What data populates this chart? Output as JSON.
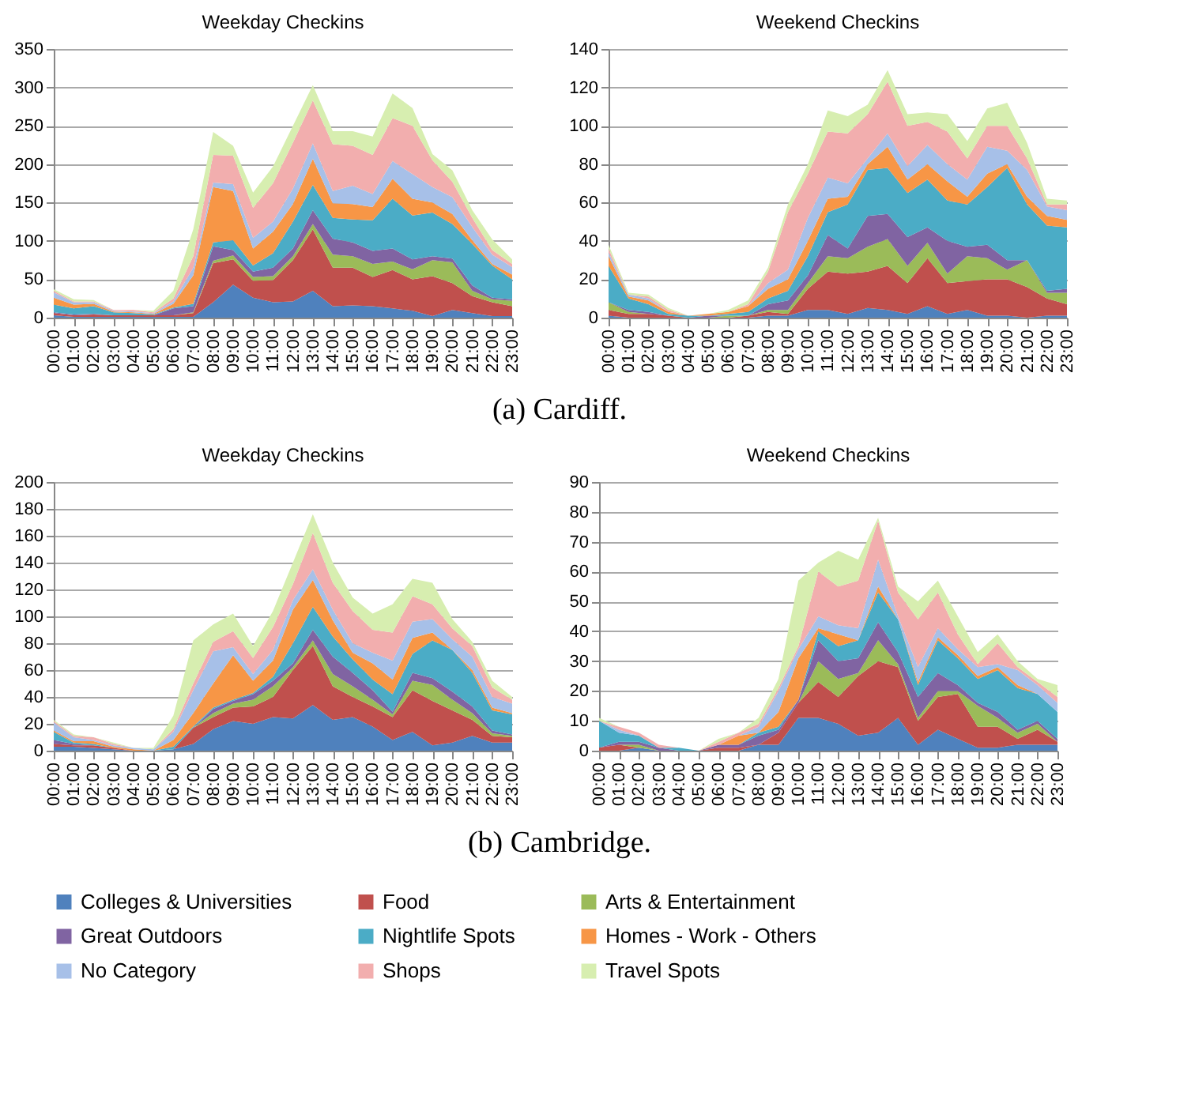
{
  "chart_data": [
    {
      "type": "area",
      "stacked": true,
      "title": "Weekday Checkins",
      "categories": [
        "00:00",
        "01:00",
        "02:00",
        "03:00",
        "04:00",
        "05:00",
        "06:00",
        "07:00",
        "08:00",
        "09:00",
        "10:00",
        "11:00",
        "12:00",
        "13:00",
        "14:00",
        "15:00",
        "16:00",
        "17:00",
        "18:00",
        "19:00",
        "20:00",
        "21:00",
        "22:00",
        "23:00"
      ],
      "ylim": [
        0,
        350
      ],
      "yticks": [
        0,
        50,
        100,
        150,
        200,
        250,
        300,
        350
      ],
      "grid": "y",
      "legend": "bottom",
      "annotations": [
        "(a) Cardiff."
      ],
      "series": [
        {
          "name": "Colleges & Universities",
          "color": "#4f81bd",
          "values": [
            3,
            1,
            1,
            1,
            1,
            1,
            1,
            1,
            20,
            43,
            26,
            20,
            21,
            35,
            15,
            16,
            15,
            12,
            9,
            2,
            10,
            6,
            2,
            2
          ]
        },
        {
          "name": "Food",
          "color": "#c0504d",
          "values": [
            3,
            2,
            3,
            2,
            2,
            2,
            2,
            5,
            51,
            33,
            22,
            29,
            54,
            80,
            50,
            49,
            38,
            50,
            41,
            52,
            35,
            22,
            18,
            13
          ]
        },
        {
          "name": "Arts & Entertainment",
          "color": "#9bbb59",
          "values": [
            0,
            0,
            0,
            0,
            0,
            0,
            0,
            1,
            3,
            5,
            5,
            5,
            5,
            7,
            17,
            15,
            17,
            11,
            13,
            21,
            27,
            7,
            4,
            7
          ]
        },
        {
          "name": "Great Outdoors",
          "color": "#8064a2",
          "values": [
            1,
            1,
            1,
            0,
            0,
            0,
            9,
            8,
            19,
            7,
            7,
            11,
            10,
            18,
            21,
            18,
            17,
            17,
            13,
            5,
            5,
            7,
            2,
            2
          ]
        },
        {
          "name": "Nightlife Spots",
          "color": "#4bacc6",
          "values": [
            10,
            8,
            10,
            4,
            3,
            1,
            1,
            3,
            5,
            13,
            8,
            19,
            35,
            33,
            27,
            30,
            40,
            65,
            57,
            57,
            45,
            54,
            42,
            26
          ]
        },
        {
          "name": "Homes - Work - Others",
          "color": "#f79646",
          "values": [
            9,
            5,
            3,
            1,
            1,
            1,
            5,
            37,
            72,
            64,
            22,
            28,
            23,
            34,
            19,
            20,
            17,
            26,
            22,
            13,
            13,
            5,
            2,
            6
          ]
        },
        {
          "name": "No Category",
          "color": "#a7c0e8",
          "values": [
            7,
            3,
            2,
            1,
            1,
            1,
            3,
            10,
            6,
            9,
            14,
            13,
            20,
            20,
            16,
            24,
            17,
            23,
            32,
            20,
            22,
            17,
            12,
            10
          ]
        },
        {
          "name": "Shops",
          "color": "#f2aeae",
          "values": [
            2,
            1,
            1,
            1,
            2,
            1,
            4,
            15,
            36,
            37,
            39,
            50,
            60,
            56,
            61,
            52,
            51,
            56,
            63,
            35,
            20,
            12,
            6,
            4
          ]
        },
        {
          "name": "Travel Spots",
          "color": "#d7eeb0",
          "values": [
            2,
            3,
            2,
            0,
            0,
            2,
            10,
            35,
            30,
            13,
            20,
            22,
            22,
            20,
            17,
            19,
            24,
            32,
            23,
            8,
            15,
            10,
            14,
            6
          ]
        }
      ]
    },
    {
      "type": "area",
      "stacked": true,
      "title": "Weekend Checkins",
      "categories": [
        "00:00",
        "01:00",
        "02:00",
        "03:00",
        "04:00",
        "05:00",
        "06:00",
        "07:00",
        "08:00",
        "09:00",
        "10:00",
        "11:00",
        "12:00",
        "13:00",
        "14:00",
        "15:00",
        "16:00",
        "17:00",
        "18:00",
        "19:00",
        "20:00",
        "21:00",
        "22:00",
        "23:00"
      ],
      "ylim": [
        0,
        140
      ],
      "yticks": [
        0,
        20,
        40,
        60,
        80,
        100,
        120,
        140
      ],
      "grid": "y",
      "legend": "bottom",
      "series": [
        {
          "name": "Colleges & Universities",
          "color": "#4f81bd",
          "values": [
            1,
            0,
            0,
            0,
            0,
            0,
            0,
            0,
            1,
            1,
            4,
            4,
            2,
            5,
            4,
            2,
            6,
            2,
            4,
            1,
            1,
            0,
            1,
            1
          ]
        },
        {
          "name": "Food",
          "color": "#c0504d",
          "values": [
            3,
            2,
            2,
            1,
            0,
            0,
            0,
            1,
            2,
            1,
            11,
            20,
            21,
            19,
            23,
            16,
            25,
            16,
            15,
            19,
            19,
            16,
            9,
            6
          ]
        },
        {
          "name": "Arts & Entertainment",
          "color": "#9bbb59",
          "values": [
            4,
            1,
            0,
            0,
            0,
            0,
            1,
            0,
            1,
            2,
            3,
            8,
            8,
            13,
            14,
            9,
            8,
            5,
            13,
            11,
            5,
            14,
            3,
            6
          ]
        },
        {
          "name": "Great Outdoors",
          "color": "#8064a2",
          "values": [
            0,
            1,
            1,
            0,
            0,
            1,
            0,
            0,
            3,
            5,
            4,
            11,
            5,
            16,
            13,
            15,
            8,
            17,
            5,
            7,
            5,
            0,
            1,
            2
          ]
        },
        {
          "name": "Nightlife Spots",
          "color": "#4bacc6",
          "values": [
            19,
            6,
            4,
            1,
            1,
            0,
            1,
            2,
            3,
            5,
            10,
            12,
            23,
            24,
            24,
            23,
            25,
            21,
            22,
            30,
            48,
            29,
            34,
            32
          ]
        },
        {
          "name": "Homes - Work - Others",
          "color": "#f79646",
          "values": [
            5,
            1,
            2,
            1,
            0,
            1,
            1,
            3,
            5,
            6,
            8,
            7,
            4,
            3,
            11,
            7,
            8,
            10,
            4,
            7,
            2,
            4,
            5,
            4
          ]
        },
        {
          "name": "No Category",
          "color": "#a7c0e8",
          "values": [
            2,
            1,
            1,
            0,
            0,
            0,
            0,
            0,
            3,
            5,
            12,
            11,
            7,
            3,
            7,
            7,
            10,
            9,
            9,
            14,
            7,
            14,
            5,
            5
          ]
        },
        {
          "name": "Shops",
          "color": "#f2aeae",
          "values": [
            2,
            0,
            1,
            1,
            0,
            0,
            0,
            1,
            6,
            30,
            23,
            24,
            26,
            23,
            27,
            21,
            12,
            17,
            11,
            11,
            13,
            6,
            1,
            3
          ]
        },
        {
          "name": "Travel Spots",
          "color": "#d7eeb0",
          "values": [
            2,
            1,
            1,
            1,
            0,
            0,
            1,
            2,
            2,
            4,
            5,
            11,
            9,
            5,
            6,
            6,
            5,
            9,
            9,
            9,
            12,
            8,
            3,
            2
          ]
        }
      ]
    },
    {
      "type": "area",
      "stacked": true,
      "title": "Weekday Checkins",
      "categories": [
        "00:00",
        "01:00",
        "02:00",
        "03:00",
        "04:00",
        "05:00",
        "06:00",
        "07:00",
        "08:00",
        "09:00",
        "10:00",
        "11:00",
        "12:00",
        "13:00",
        "14:00",
        "15:00",
        "16:00",
        "17:00",
        "18:00",
        "19:00",
        "20:00",
        "21:00",
        "22:00",
        "23:00"
      ],
      "ylim": [
        0,
        200
      ],
      "yticks": [
        0,
        20,
        40,
        60,
        80,
        100,
        120,
        140,
        160,
        180,
        200
      ],
      "grid": "y",
      "legend": "bottom",
      "annotations": [
        "(b) Cambridge."
      ],
      "series": [
        {
          "name": "Colleges & Universities",
          "color": "#4f81bd",
          "values": [
            3,
            3,
            2,
            1,
            0,
            0,
            1,
            5,
            16,
            22,
            20,
            25,
            24,
            34,
            23,
            25,
            18,
            8,
            14,
            4,
            6,
            11,
            6,
            6
          ]
        },
        {
          "name": "Food",
          "color": "#c0504d",
          "values": [
            2,
            1,
            2,
            1,
            0,
            0,
            0,
            12,
            9,
            10,
            13,
            15,
            36,
            44,
            25,
            15,
            15,
            17,
            31,
            33,
            24,
            12,
            5,
            4
          ]
        },
        {
          "name": "Arts & Entertainment",
          "color": "#9bbb59",
          "values": [
            0,
            0,
            0,
            0,
            0,
            0,
            0,
            0,
            3,
            3,
            5,
            8,
            2,
            4,
            9,
            8,
            5,
            2,
            7,
            12,
            8,
            5,
            2,
            1
          ]
        },
        {
          "name": "Great Outdoors",
          "color": "#8064a2",
          "values": [
            3,
            1,
            0,
            0,
            0,
            0,
            0,
            0,
            3,
            2,
            4,
            4,
            3,
            8,
            13,
            10,
            7,
            2,
            6,
            5,
            6,
            5,
            2,
            1
          ]
        },
        {
          "name": "Nightlife Spots",
          "color": "#4bacc6",
          "values": [
            6,
            1,
            1,
            0,
            0,
            0,
            2,
            1,
            1,
            1,
            1,
            3,
            15,
            17,
            15,
            10,
            8,
            13,
            14,
            28,
            31,
            25,
            15,
            15
          ]
        },
        {
          "name": "Homes - Work - Others",
          "color": "#f79646",
          "values": [
            1,
            1,
            2,
            1,
            1,
            0,
            5,
            10,
            18,
            33,
            9,
            12,
            25,
            20,
            12,
            5,
            12,
            11,
            12,
            6,
            0,
            2,
            2,
            1
          ]
        },
        {
          "name": "No Category",
          "color": "#a7c0e8",
          "values": [
            6,
            3,
            1,
            1,
            1,
            1,
            6,
            17,
            24,
            6,
            5,
            8,
            7,
            8,
            8,
            7,
            8,
            14,
            12,
            10,
            8,
            10,
            8,
            7
          ]
        },
        {
          "name": "Shops",
          "color": "#f2aeae",
          "values": [
            1,
            1,
            2,
            1,
            0,
            0,
            2,
            5,
            7,
            12,
            12,
            17,
            12,
            27,
            20,
            24,
            17,
            21,
            19,
            11,
            8,
            8,
            7,
            3
          ]
        },
        {
          "name": "Travel Spots",
          "color": "#d7eeb0",
          "values": [
            1,
            1,
            0,
            1,
            0,
            1,
            10,
            32,
            13,
            13,
            9,
            12,
            16,
            14,
            15,
            10,
            12,
            21,
            13,
            16,
            7,
            3,
            5,
            2
          ]
        }
      ]
    },
    {
      "type": "area",
      "stacked": true,
      "title": "Weekend Checkins",
      "categories": [
        "00:00",
        "01:00",
        "02:00",
        "03:00",
        "04:00",
        "05:00",
        "06:00",
        "07:00",
        "08:00",
        "09:00",
        "10:00",
        "11:00",
        "12:00",
        "13:00",
        "14:00",
        "15:00",
        "16:00",
        "17:00",
        "18:00",
        "19:00",
        "20:00",
        "21:00",
        "22:00",
        "23:00"
      ],
      "ylim": [
        0,
        90
      ],
      "yticks": [
        0,
        10,
        20,
        30,
        40,
        50,
        60,
        70,
        80,
        90
      ],
      "grid": "y",
      "legend": "bottom",
      "series": [
        {
          "name": "Colleges & Universities",
          "color": "#4f81bd",
          "values": [
            0,
            0,
            1,
            0,
            0,
            0,
            0,
            0,
            2,
            2,
            11,
            11,
            9,
            5,
            6,
            11,
            2,
            7,
            4,
            1,
            1,
            2,
            2,
            2
          ]
        },
        {
          "name": "Food",
          "color": "#c0504d",
          "values": [
            1,
            2,
            0,
            0,
            0,
            0,
            1,
            1,
            0,
            4,
            5,
            12,
            9,
            20,
            24,
            17,
            8,
            11,
            15,
            7,
            7,
            2,
            5,
            1
          ]
        },
        {
          "name": "Arts & Entertainment",
          "color": "#9bbb59",
          "values": [
            0,
            0,
            1,
            0,
            0,
            0,
            0,
            0,
            0,
            0,
            0,
            7,
            6,
            1,
            7,
            1,
            1,
            2,
            1,
            7,
            3,
            2,
            2,
            0
          ]
        },
        {
          "name": "Great Outdoors",
          "color": "#8064a2",
          "values": [
            0,
            1,
            1,
            1,
            0,
            0,
            1,
            1,
            3,
            1,
            1,
            7,
            6,
            5,
            6,
            4,
            7,
            6,
            2,
            1,
            2,
            1,
            1,
            1
          ]
        },
        {
          "name": "Nightlife Spots",
          "color": "#4bacc6",
          "values": [
            9,
            3,
            2,
            0,
            1,
            0,
            0,
            0,
            1,
            1,
            0,
            3,
            5,
            6,
            10,
            11,
            4,
            11,
            9,
            8,
            14,
            14,
            9,
            9
          ]
        },
        {
          "name": "Homes - Work - Others",
          "color": "#f79646",
          "values": [
            0,
            0,
            0,
            0,
            0,
            0,
            0,
            3,
            0,
            5,
            14,
            1,
            4,
            0,
            2,
            0,
            1,
            1,
            1,
            1,
            1,
            1,
            0,
            0
          ]
        },
        {
          "name": "No Category",
          "color": "#a7c0e8",
          "values": [
            0,
            1,
            0,
            0,
            0,
            0,
            0,
            0,
            2,
            7,
            3,
            4,
            3,
            4,
            9,
            1,
            5,
            3,
            2,
            3,
            1,
            5,
            3,
            3
          ]
        },
        {
          "name": "Shops",
          "color": "#f2aeae",
          "values": [
            0,
            1,
            1,
            1,
            0,
            0,
            1,
            1,
            1,
            1,
            1,
            15,
            13,
            16,
            13,
            8,
            16,
            12,
            5,
            1,
            7,
            1,
            1,
            2
          ]
        },
        {
          "name": "Travel Spots",
          "color": "#d7eeb0",
          "values": [
            1,
            0,
            0,
            0,
            0,
            0,
            1,
            0,
            2,
            3,
            22,
            3,
            12,
            7,
            1,
            2,
            6,
            4,
            6,
            4,
            3,
            2,
            1,
            4
          ]
        }
      ]
    }
  ]
}
